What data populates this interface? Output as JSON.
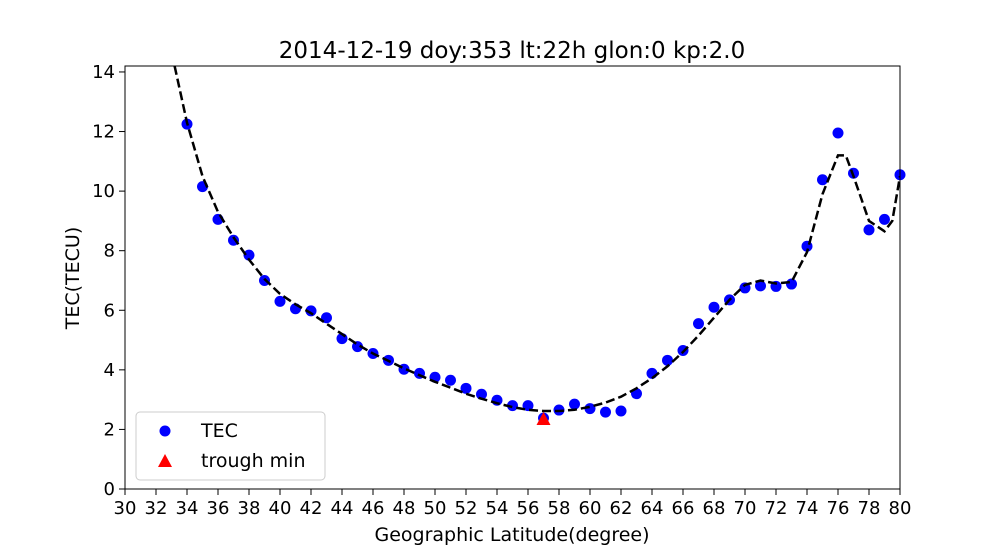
{
  "chart_data": {
    "type": "scatter",
    "title": "2014-12-19  doy:353  lt:22h  glon:0  kp:2.0",
    "xlabel": "Geographic Latitude(degree)",
    "ylabel": "TEC(TECU)",
    "xlim": [
      30,
      80
    ],
    "ylim": [
      0,
      14.2
    ],
    "x_ticks": [
      30,
      32,
      34,
      36,
      38,
      40,
      42,
      44,
      46,
      48,
      50,
      52,
      54,
      56,
      58,
      60,
      62,
      64,
      66,
      68,
      70,
      72,
      74,
      76,
      78,
      80
    ],
    "y_ticks": [
      0,
      2,
      4,
      6,
      8,
      10,
      12,
      14
    ],
    "grid": false,
    "legend_position": "lower-left",
    "series": [
      {
        "name": "TEC",
        "marker": "circle",
        "color": "#0000ff",
        "points": [
          [
            34,
            12.25
          ],
          [
            35,
            10.15
          ],
          [
            36,
            9.05
          ],
          [
            37,
            8.35
          ],
          [
            38,
            7.85
          ],
          [
            39,
            7.0
          ],
          [
            40,
            6.3
          ],
          [
            41,
            6.05
          ],
          [
            42,
            5.98
          ],
          [
            43,
            5.75
          ],
          [
            44,
            5.05
          ],
          [
            45,
            4.78
          ],
          [
            46,
            4.55
          ],
          [
            47,
            4.32
          ],
          [
            48,
            4.02
          ],
          [
            49,
            3.88
          ],
          [
            50,
            3.75
          ],
          [
            51,
            3.65
          ],
          [
            52,
            3.38
          ],
          [
            53,
            3.18
          ],
          [
            54,
            2.98
          ],
          [
            55,
            2.8
          ],
          [
            56,
            2.8
          ],
          [
            57,
            2.38
          ],
          [
            58,
            2.65
          ],
          [
            59,
            2.85
          ],
          [
            60,
            2.7
          ],
          [
            61,
            2.58
          ],
          [
            62,
            2.62
          ],
          [
            63,
            3.2
          ],
          [
            64,
            3.88
          ],
          [
            65,
            4.32
          ],
          [
            66,
            4.65
          ],
          [
            67,
            5.55
          ],
          [
            68,
            6.1
          ],
          [
            69,
            6.35
          ],
          [
            70,
            6.75
          ],
          [
            71,
            6.82
          ],
          [
            72,
            6.8
          ],
          [
            73,
            6.88
          ],
          [
            74,
            8.15
          ],
          [
            75,
            10.38
          ],
          [
            76,
            11.95
          ],
          [
            77,
            10.6
          ],
          [
            78,
            8.7
          ],
          [
            79,
            9.05
          ],
          [
            80,
            10.55
          ]
        ]
      },
      {
        "name": "trough min",
        "marker": "triangle",
        "color": "#ff0000",
        "points": [
          [
            57,
            2.35
          ]
        ]
      }
    ],
    "fit_curve": {
      "style": "dashed",
      "color": "#000000",
      "points": [
        [
          33.2,
          14.2
        ],
        [
          34,
          12.3
        ],
        [
          35,
          10.5
        ],
        [
          36,
          9.3
        ],
        [
          37,
          8.45
        ],
        [
          38,
          7.7
        ],
        [
          39,
          7.05
        ],
        [
          40,
          6.55
        ],
        [
          41,
          6.2
        ],
        [
          42,
          5.9
        ],
        [
          43,
          5.55
        ],
        [
          44,
          5.2
        ],
        [
          45,
          4.85
        ],
        [
          46,
          4.55
        ],
        [
          47,
          4.3
        ],
        [
          48,
          4.05
        ],
        [
          49,
          3.82
        ],
        [
          50,
          3.6
        ],
        [
          51,
          3.4
        ],
        [
          52,
          3.2
        ],
        [
          53,
          3.03
        ],
        [
          54,
          2.88
        ],
        [
          55,
          2.75
        ],
        [
          56,
          2.66
        ],
        [
          57,
          2.62
        ],
        [
          58,
          2.62
        ],
        [
          59,
          2.66
        ],
        [
          60,
          2.76
        ],
        [
          61,
          2.9
        ],
        [
          62,
          3.1
        ],
        [
          63,
          3.38
        ],
        [
          64,
          3.72
        ],
        [
          65,
          4.12
        ],
        [
          66,
          4.6
        ],
        [
          67,
          5.15
        ],
        [
          68,
          5.75
        ],
        [
          69,
          6.35
        ],
        [
          70,
          6.85
        ],
        [
          71,
          7.0
        ],
        [
          72,
          6.9
        ],
        [
          73,
          6.95
        ],
        [
          74,
          7.95
        ],
        [
          75,
          9.9
        ],
        [
          76,
          11.2
        ],
        [
          76.5,
          11.2
        ],
        [
          77,
          10.5
        ],
        [
          78,
          9.0
        ],
        [
          79,
          8.65
        ],
        [
          79.5,
          9.0
        ],
        [
          80,
          10.5
        ]
      ]
    }
  }
}
